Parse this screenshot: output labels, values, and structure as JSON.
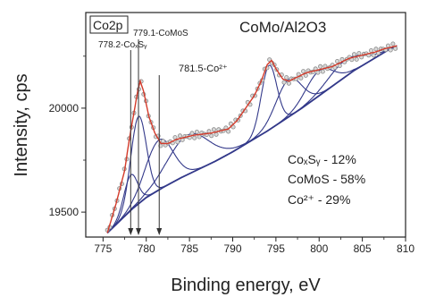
{
  "chart_data": {
    "type": "line",
    "title": "CoMo/Al2O3",
    "xlabel": "Binding energy, eV",
    "ylabel": "Intensity, cps",
    "xlim": [
      773,
      810
    ],
    "ylim": [
      19380,
      20460
    ],
    "x_ticks": [
      775,
      780,
      785,
      790,
      795,
      800,
      805,
      810
    ],
    "y_ticks": [
      19500,
      20000
    ],
    "grid": false,
    "corner_label": "Co2p",
    "markers": [
      {
        "x": 778.2,
        "label": "778.2-CoₓSᵧ"
      },
      {
        "x": 779.1,
        "label": "779.1-CoMoS"
      },
      {
        "x": 781.5,
        "label": "781.5-Co²⁺"
      }
    ],
    "legend": [
      "CoₓSᵧ - 12%",
      "CoMoS - 58%",
      "Co²⁺ - 29%"
    ],
    "series": [
      {
        "role": "measured",
        "x": [
          775.5,
          776.5,
          777.5,
          778.0,
          778.5,
          779.0,
          779.3,
          779.7,
          780.3,
          781.0,
          781.7,
          782.5,
          783.5,
          784.5,
          785.5,
          786.5,
          787.5,
          788.5,
          789.5,
          790.5,
          791.5,
          792.5,
          793.3,
          794.0,
          794.5,
          795.0,
          795.8,
          796.5,
          797.5,
          798.5,
          799.5,
          800.5,
          801.5,
          802.5,
          803.5,
          804.5,
          805.5,
          806.5,
          807.5,
          808.5,
          809.0
        ],
        "y": [
          19400,
          19540,
          19700,
          19840,
          19960,
          20080,
          20130,
          20080,
          19960,
          19880,
          19830,
          19830,
          19850,
          19860,
          19870,
          19875,
          19880,
          19890,
          19900,
          19940,
          20000,
          20060,
          20130,
          20210,
          20230,
          20190,
          20140,
          20130,
          20150,
          20170,
          20180,
          20190,
          20200,
          20220,
          20240,
          20250,
          20260,
          20270,
          20285,
          20295,
          20300
        ]
      },
      {
        "role": "background",
        "x": [
          775.5,
          777.0,
          778.5,
          780.0,
          782.0,
          784.0,
          786.0,
          788.0,
          790.0,
          792.0,
          794.0,
          796.0,
          798.0,
          800.0,
          802.0,
          804.0,
          806.0,
          808.0,
          809.0
        ],
        "y": [
          19400,
          19460,
          19520,
          19570,
          19620,
          19665,
          19705,
          19745,
          19790,
          19840,
          19890,
          19945,
          20000,
          20060,
          20120,
          20180,
          20230,
          20280,
          20300
        ]
      }
    ],
    "components": [
      {
        "center": 778.2,
        "amplitude": 170,
        "width": 0.8
      },
      {
        "center": 779.1,
        "amplitude": 420,
        "width": 0.9
      },
      {
        "center": 781.5,
        "amplitude": 240,
        "width": 1.6
      },
      {
        "center": 784.8,
        "amplitude": 190,
        "width": 2.4
      },
      {
        "center": 794.2,
        "amplitude": 310,
        "width": 0.9
      },
      {
        "center": 796.5,
        "amplitude": 180,
        "width": 1.5
      },
      {
        "center": 800.0,
        "amplitude": 120,
        "width": 1.6
      },
      {
        "center": 803.0,
        "amplitude": 80,
        "width": 2.0
      }
    ],
    "colors": {
      "measured_points": "#8a8a8a",
      "fit": "#d43a2a",
      "components": "#33398a",
      "axis": "#222222"
    }
  }
}
